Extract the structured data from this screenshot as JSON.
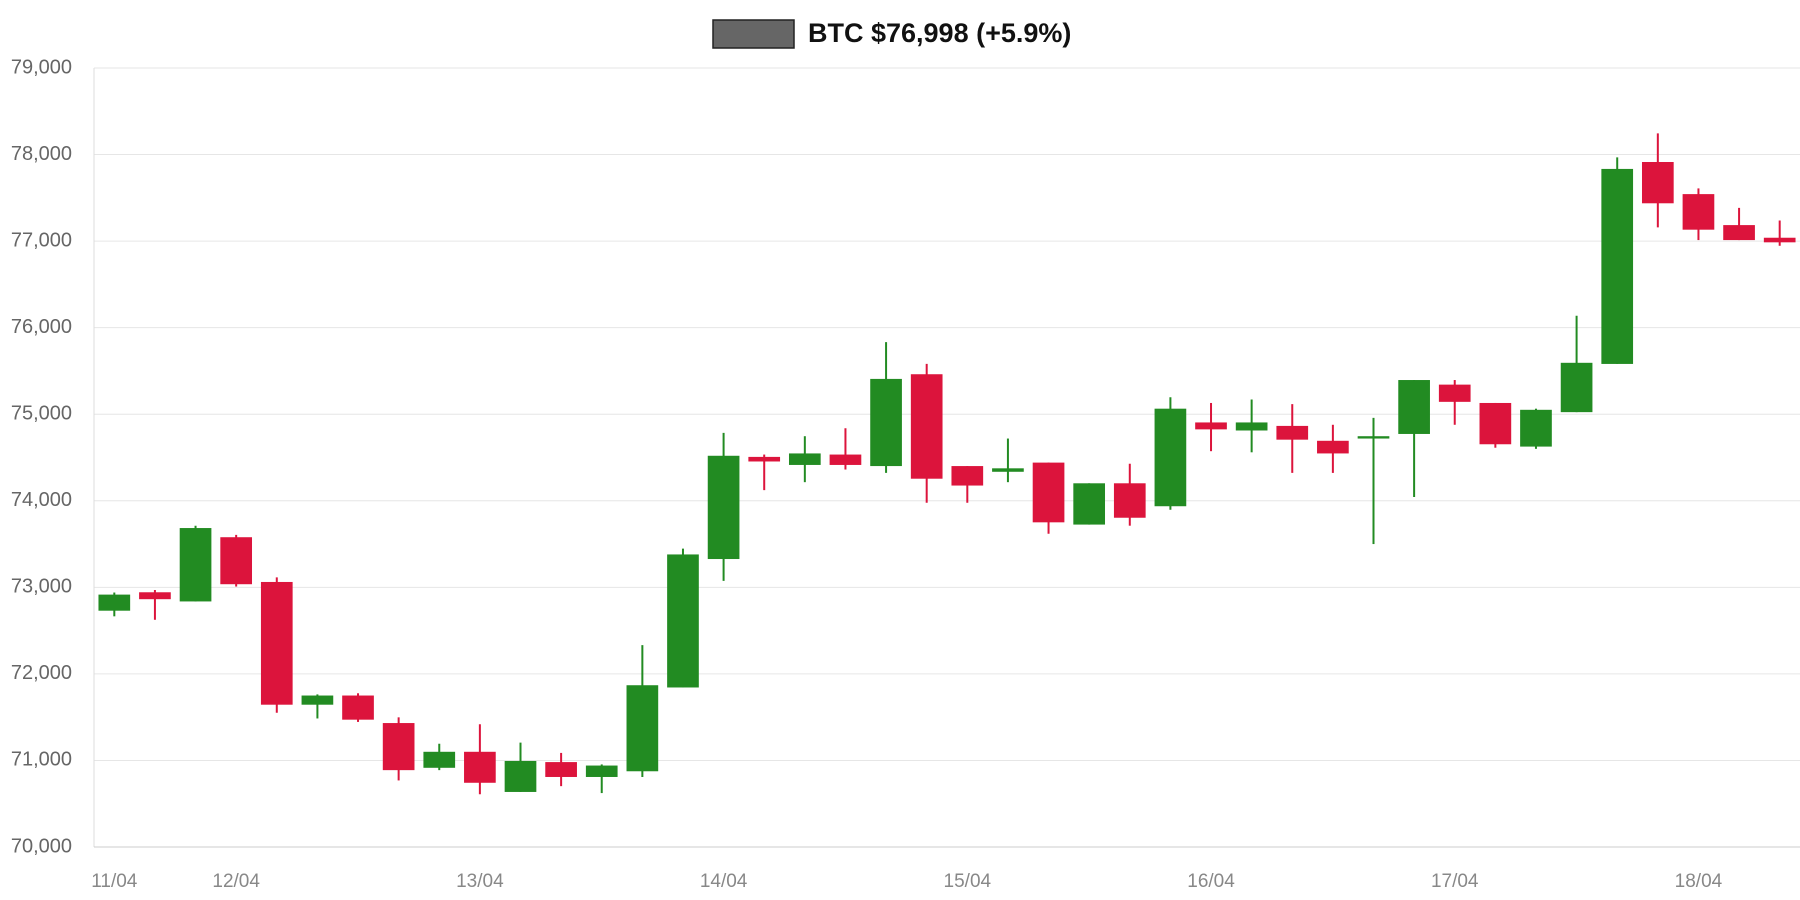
{
  "chart_data": {
    "type": "candlestick",
    "categories": [
      "11/04",
      null,
      null,
      "12/04",
      null,
      null,
      null,
      null,
      null,
      "13/04",
      null,
      null,
      null,
      null,
      null,
      "14/04",
      null,
      null,
      null,
      null,
      null,
      "15/04",
      null,
      null,
      null,
      null,
      null,
      "16/04",
      null,
      null,
      null,
      null,
      null,
      "17/04",
      null,
      null,
      null,
      null,
      null,
      "18/04",
      null,
      null
    ],
    "series": [
      {
        "name": "BTC $76,998 (+5.9%)",
        "color": "#666666",
        "up_color": "#228b22",
        "down_color": "#dc143c",
        "open": [
          72730,
          72943,
          72837,
          73579,
          73062,
          71644,
          71750,
          71432,
          70915,
          71100,
          70636,
          70981,
          70809,
          70875,
          71843,
          73327,
          74507,
          74414,
          74534,
          74401,
          75462,
          74401,
          74335,
          74441,
          73725,
          74202,
          73937,
          74905,
          74812,
          74865,
          74693,
          74719,
          74772,
          75342,
          75130,
          74626,
          75024,
          75581,
          77914,
          77543,
          77185,
          77039
        ],
        "high": [
          72940,
          72969,
          73712,
          73606,
          73115,
          71763,
          71776,
          71498,
          71193,
          71418,
          71206,
          71087,
          70954,
          72333,
          73447,
          74785,
          74534,
          74746,
          74838,
          75833,
          75581,
          74401,
          74719,
          74441,
          74202,
          74428,
          75196,
          75130,
          75170,
          75117,
          74878,
          74958,
          75395,
          75395,
          75130,
          75064,
          76138,
          77967,
          78245,
          77609,
          77384,
          77238
        ],
        "low": [
          72665,
          72625,
          72837,
          73009,
          71551,
          71485,
          71445,
          70769,
          70888,
          70610,
          70636,
          70703,
          70623,
          70809,
          71843,
          73075,
          74123,
          74215,
          74361,
          74322,
          73977,
          73977,
          74215,
          73619,
          73725,
          73712,
          73897,
          74573,
          74560,
          74322,
          74322,
          73500,
          74043,
          74878,
          74613,
          74600,
          75024,
          75581,
          77158,
          77012,
          77012,
          76946
        ],
        "close": [
          72916,
          72863,
          73685,
          73036,
          71644,
          71750,
          71471,
          70888,
          71100,
          70742,
          70994,
          70809,
          70941,
          71869,
          73380,
          74520,
          74454,
          74547,
          74414,
          75408,
          74255,
          74176,
          74375,
          73751,
          74202,
          73804,
          75064,
          74825,
          74905,
          74706,
          74547,
          74746,
          75395,
          75143,
          74653,
          75051,
          75594,
          77834,
          77437,
          77132,
          77012,
          76986
        ]
      }
    ],
    "ylim": [
      70000,
      79000
    ],
    "yticks": [
      {
        "value": 70000,
        "label": "70,000"
      },
      {
        "value": 71000,
        "label": "71,000"
      },
      {
        "value": 72000,
        "label": "72,000"
      },
      {
        "value": 73000,
        "label": "73,000"
      },
      {
        "value": 74000,
        "label": "74,000"
      },
      {
        "value": 75000,
        "label": "75,000"
      },
      {
        "value": 76000,
        "label": "76,000"
      },
      {
        "value": 77000,
        "label": "77,000"
      },
      {
        "value": 78000,
        "label": "78,000"
      },
      {
        "value": 79000,
        "label": "79,000"
      }
    ],
    "grid": true
  }
}
